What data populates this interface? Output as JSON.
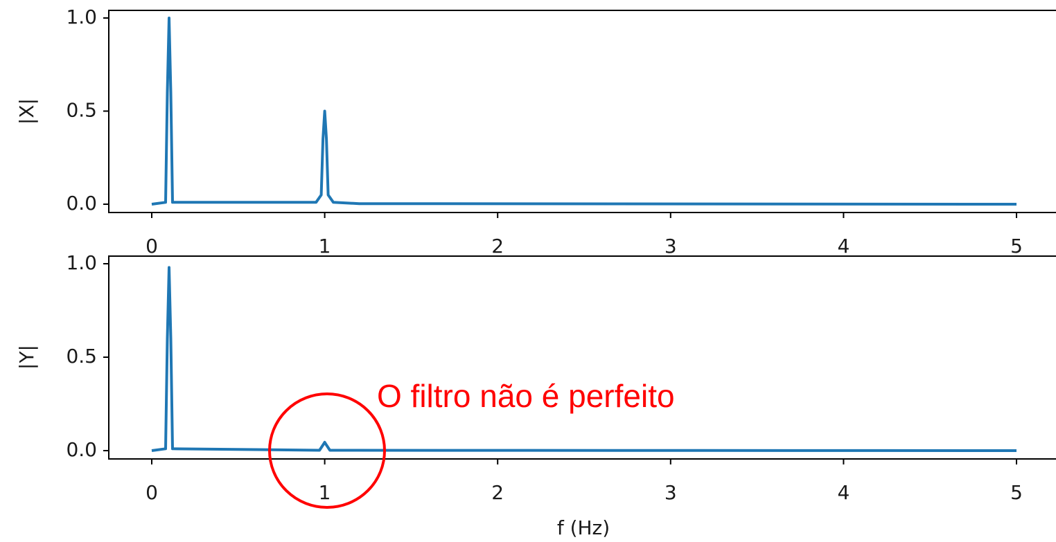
{
  "chart_data": [
    {
      "type": "line",
      "ylabel": "|X|",
      "xlabel": "",
      "xlim": [
        0,
        5
      ],
      "ylim": [
        0,
        1.0
      ],
      "xticks": [
        "0",
        "1",
        "2",
        "3",
        "4",
        "5"
      ],
      "yticks": [
        "0.0",
        "0.5",
        "1.0"
      ],
      "series": [
        {
          "color": "#1f77b4",
          "x": [
            0,
            0.08,
            0.09,
            0.1,
            0.11,
            0.12,
            0.95,
            0.98,
            0.99,
            1.0,
            1.01,
            1.02,
            1.05,
            1.2,
            5.0
          ],
          "values": [
            0.0,
            0.01,
            0.6,
            1.0,
            0.6,
            0.01,
            0.01,
            0.05,
            0.35,
            0.5,
            0.35,
            0.05,
            0.01,
            0.003,
            0.0
          ]
        }
      ]
    },
    {
      "type": "line",
      "ylabel": "|Y|",
      "xlabel": "f (Hz)",
      "xlim": [
        0,
        5
      ],
      "ylim": [
        0,
        1.0
      ],
      "xticks": [
        "0",
        "1",
        "2",
        "3",
        "4",
        "5"
      ],
      "yticks": [
        "0.0",
        "0.5",
        "1.0"
      ],
      "series": [
        {
          "color": "#1f77b4",
          "x": [
            0,
            0.08,
            0.09,
            0.1,
            0.11,
            0.12,
            0.97,
            0.99,
            1.0,
            1.01,
            1.03,
            5.0
          ],
          "values": [
            0.0,
            0.01,
            0.6,
            0.98,
            0.6,
            0.01,
            0.002,
            0.03,
            0.045,
            0.03,
            0.002,
            0.0
          ]
        }
      ]
    }
  ],
  "annotation": {
    "text": "O filtro não é perfeito",
    "color": "#ff0000"
  }
}
